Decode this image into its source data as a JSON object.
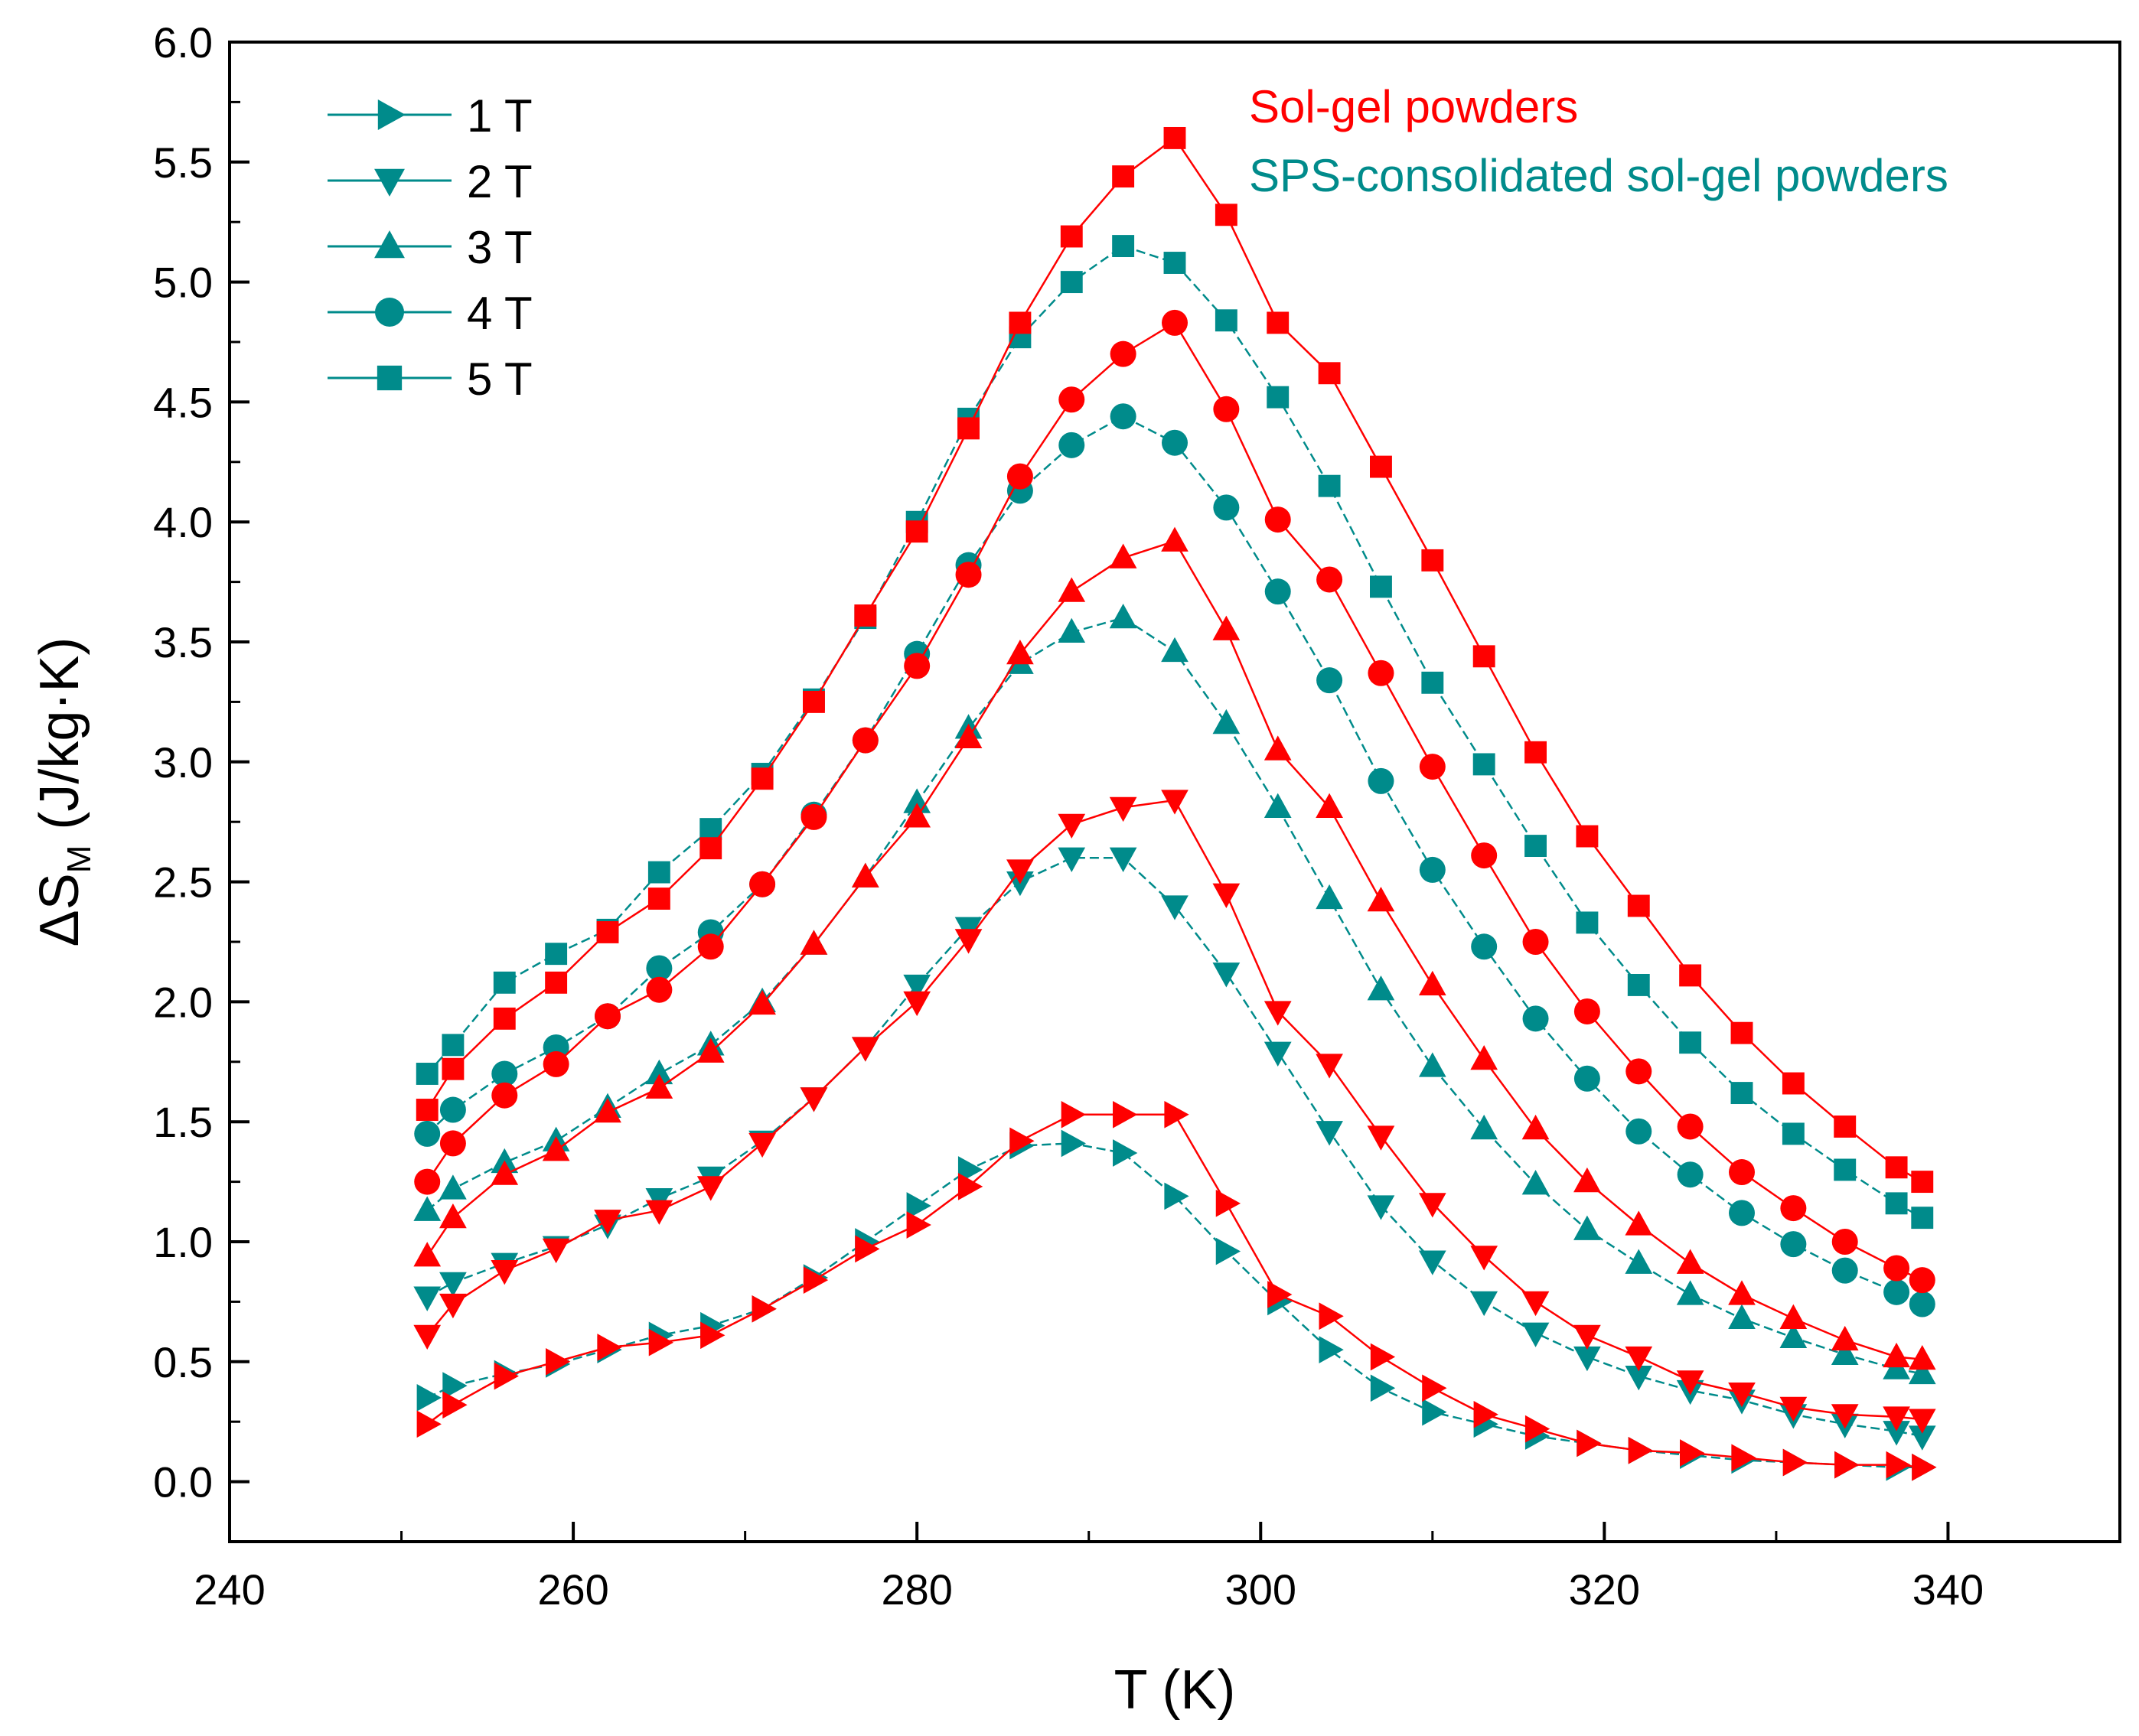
{
  "chart_data": {
    "type": "scatter",
    "xlabel": "T (K)",
    "ylabel_main": "ΔS",
    "ylabel_sub": "M",
    "ylabel_unit": " (J/kg·K)",
    "xlim": [
      240,
      350
    ],
    "ylim": [
      -0.25,
      6.0
    ],
    "x_ticks": [
      240,
      260,
      280,
      300,
      320,
      340
    ],
    "y_ticks": [
      0.0,
      0.5,
      1.0,
      1.5,
      2.0,
      2.5,
      3.0,
      3.5,
      4.0,
      4.5,
      5.0,
      5.5,
      6.0
    ],
    "y_tick_labels": [
      "0.0",
      "0.5",
      "1.0",
      "1.5",
      "2.0",
      "2.5",
      "3.0",
      "3.5",
      "4.0",
      "4.5",
      "5.0",
      "5.5",
      "6.0"
    ],
    "colors": {
      "sol_gel": "#ff0000",
      "sps": "#008b8b",
      "axis": "#000000"
    },
    "legend": {
      "position": "top-left",
      "items": [
        {
          "label": "1 T",
          "marker": "triangle-right"
        },
        {
          "label": "2 T",
          "marker": "triangle-down"
        },
        {
          "label": "3 T",
          "marker": "triangle-up"
        },
        {
          "label": "4 T",
          "marker": "circle"
        },
        {
          "label": "5 T",
          "marker": "square"
        }
      ]
    },
    "annotations": [
      {
        "text": "Sol-gel powders",
        "color_key": "sol_gel"
      },
      {
        "text": "SPS-consolidated sol-gel powders",
        "color_key": "sps"
      }
    ],
    "series": [
      {
        "name": "Sol-gel 1 T",
        "group": "sol_gel",
        "field": "1 T",
        "marker": "triangle-right",
        "x": [
          251.5,
          253,
          256,
          259,
          262,
          265,
          268,
          271,
          274,
          277,
          280,
          283,
          286,
          289,
          292,
          295,
          298,
          301,
          304,
          307,
          310,
          313,
          316,
          319,
          322,
          325,
          328,
          331,
          334,
          337,
          338.5
        ],
        "y": [
          0.24,
          0.32,
          0.44,
          0.5,
          0.56,
          0.58,
          0.61,
          0.72,
          0.84,
          0.97,
          1.07,
          1.23,
          1.42,
          1.53,
          1.53,
          1.53,
          1.16,
          0.78,
          0.69,
          0.52,
          0.39,
          0.28,
          0.22,
          0.16,
          0.13,
          0.12,
          0.1,
          0.08,
          0.07,
          0.07,
          0.06
        ]
      },
      {
        "name": "Sol-gel 2 T",
        "group": "sol_gel",
        "field": "2 T",
        "marker": "triangle-down",
        "x": [
          251.5,
          253,
          256,
          259,
          262,
          265,
          268,
          271,
          274,
          277,
          280,
          283,
          286,
          289,
          292,
          295,
          298,
          301,
          304,
          307,
          310,
          313,
          316,
          319,
          322,
          325,
          328,
          331,
          334,
          337,
          338.5
        ],
        "y": [
          0.61,
          0.74,
          0.88,
          0.97,
          1.09,
          1.13,
          1.23,
          1.41,
          1.6,
          1.81,
          2.0,
          2.26,
          2.55,
          2.74,
          2.81,
          2.84,
          2.45,
          1.96,
          1.74,
          1.44,
          1.16,
          0.94,
          0.75,
          0.61,
          0.52,
          0.42,
          0.37,
          0.31,
          0.28,
          0.27,
          0.26
        ]
      },
      {
        "name": "Sol-gel 3 T",
        "group": "sol_gel",
        "field": "3 T",
        "marker": "triangle-up",
        "x": [
          251.5,
          253,
          256,
          259,
          262,
          265,
          268,
          271,
          274,
          277,
          280,
          283,
          286,
          289,
          292,
          295,
          298,
          301,
          304,
          307,
          310,
          313,
          316,
          319,
          322,
          325,
          328,
          331,
          334,
          337,
          338.5
        ],
        "y": [
          0.94,
          1.1,
          1.28,
          1.38,
          1.54,
          1.64,
          1.79,
          1.99,
          2.24,
          2.52,
          2.77,
          3.1,
          3.45,
          3.71,
          3.85,
          3.92,
          3.55,
          3.05,
          2.81,
          2.42,
          2.07,
          1.76,
          1.47,
          1.25,
          1.07,
          0.91,
          0.78,
          0.68,
          0.59,
          0.52,
          0.51
        ]
      },
      {
        "name": "Sol-gel 4 T",
        "group": "sol_gel",
        "field": "4 T",
        "marker": "circle",
        "x": [
          251.5,
          253,
          256,
          259,
          262,
          265,
          268,
          271,
          274,
          277,
          280,
          283,
          286,
          289,
          292,
          295,
          298,
          301,
          304,
          307,
          310,
          313,
          316,
          319,
          322,
          325,
          328,
          331,
          334,
          337,
          338.5
        ],
        "y": [
          1.25,
          1.41,
          1.61,
          1.74,
          1.94,
          2.05,
          2.23,
          2.49,
          2.77,
          3.09,
          3.4,
          3.78,
          4.19,
          4.51,
          4.7,
          4.83,
          4.47,
          4.01,
          3.76,
          3.37,
          2.98,
          2.61,
          2.25,
          1.96,
          1.71,
          1.48,
          1.29,
          1.14,
          1.0,
          0.89,
          0.84
        ]
      },
      {
        "name": "Sol-gel 5 T",
        "group": "sol_gel",
        "field": "5 T",
        "marker": "square",
        "x": [
          251.5,
          253,
          256,
          259,
          262,
          265,
          268,
          271,
          274,
          277,
          280,
          283,
          286,
          289,
          292,
          295,
          298,
          301,
          304,
          307,
          310,
          313,
          316,
          319,
          322,
          325,
          328,
          331,
          334,
          337,
          338.5
        ],
        "y": [
          1.55,
          1.72,
          1.93,
          2.08,
          2.29,
          2.43,
          2.64,
          2.93,
          3.25,
          3.61,
          3.96,
          4.39,
          4.83,
          5.19,
          5.44,
          5.6,
          5.28,
          4.83,
          4.62,
          4.23,
          3.84,
          3.44,
          3.04,
          2.69,
          2.4,
          2.11,
          1.87,
          1.66,
          1.48,
          1.31,
          1.25
        ]
      },
      {
        "name": "SPS 1 T",
        "group": "sps",
        "field": "1 T",
        "marker": "triangle-right",
        "x": [
          251.5,
          253,
          256,
          259,
          262,
          265,
          268,
          271,
          274,
          277,
          280,
          283,
          286,
          289,
          292,
          295,
          298,
          301,
          304,
          307,
          310,
          313,
          316,
          319,
          322,
          325,
          328,
          331,
          334,
          337,
          338.5
        ],
        "y": [
          0.35,
          0.4,
          0.45,
          0.49,
          0.55,
          0.61,
          0.65,
          0.72,
          0.85,
          1.0,
          1.15,
          1.3,
          1.4,
          1.41,
          1.37,
          1.19,
          0.96,
          0.75,
          0.55,
          0.39,
          0.29,
          0.24,
          0.19,
          0.16,
          0.13,
          0.11,
          0.09,
          0.08,
          0.07,
          0.06,
          0.06
        ]
      },
      {
        "name": "SPS 2 T",
        "group": "sps",
        "field": "2 T",
        "marker": "triangle-down",
        "x": [
          251.5,
          253,
          256,
          259,
          262,
          265,
          268,
          271,
          274,
          277,
          280,
          283,
          286,
          289,
          292,
          295,
          298,
          301,
          304,
          307,
          310,
          313,
          316,
          319,
          322,
          325,
          328,
          331,
          334,
          337,
          338.5
        ],
        "y": [
          0.77,
          0.83,
          0.91,
          0.98,
          1.07,
          1.18,
          1.27,
          1.42,
          1.6,
          1.81,
          2.07,
          2.31,
          2.5,
          2.6,
          2.6,
          2.4,
          2.12,
          1.79,
          1.46,
          1.15,
          0.92,
          0.75,
          0.62,
          0.52,
          0.44,
          0.38,
          0.34,
          0.28,
          0.24,
          0.21,
          0.19
        ]
      },
      {
        "name": "SPS 3 T",
        "group": "sps",
        "field": "3 T",
        "marker": "triangle-up",
        "x": [
          251.5,
          253,
          256,
          259,
          262,
          265,
          268,
          271,
          274,
          277,
          280,
          283,
          286,
          289,
          292,
          295,
          298,
          301,
          304,
          307,
          310,
          313,
          316,
          319,
          322,
          325,
          328,
          331,
          334,
          337,
          338.5
        ],
        "y": [
          1.13,
          1.22,
          1.33,
          1.42,
          1.56,
          1.7,
          1.82,
          2.0,
          2.24,
          2.52,
          2.83,
          3.14,
          3.41,
          3.54,
          3.6,
          3.46,
          3.16,
          2.81,
          2.43,
          2.05,
          1.73,
          1.47,
          1.24,
          1.05,
          0.91,
          0.78,
          0.68,
          0.6,
          0.53,
          0.47,
          0.45
        ]
      },
      {
        "name": "SPS 4 T",
        "group": "sps",
        "field": "4 T",
        "marker": "circle",
        "x": [
          251.5,
          253,
          256,
          259,
          262,
          265,
          268,
          271,
          274,
          277,
          280,
          283,
          286,
          289,
          292,
          295,
          298,
          301,
          304,
          307,
          310,
          313,
          316,
          319,
          322,
          325,
          328,
          331,
          334,
          337,
          338.5
        ],
        "y": [
          1.45,
          1.55,
          1.7,
          1.81,
          1.94,
          2.14,
          2.29,
          2.49,
          2.78,
          3.09,
          3.45,
          3.82,
          4.13,
          4.32,
          4.44,
          4.33,
          4.06,
          3.71,
          3.34,
          2.92,
          2.55,
          2.23,
          1.93,
          1.68,
          1.46,
          1.28,
          1.12,
          0.99,
          0.88,
          0.79,
          0.74
        ]
      },
      {
        "name": "SPS 5 T",
        "group": "sps",
        "field": "5 T",
        "marker": "square",
        "x": [
          251.5,
          253,
          256,
          259,
          262,
          265,
          268,
          271,
          274,
          277,
          280,
          283,
          286,
          289,
          292,
          295,
          298,
          301,
          304,
          307,
          310,
          313,
          316,
          319,
          322,
          325,
          328,
          331,
          334,
          337,
          338.5
        ],
        "y": [
          1.7,
          1.82,
          2.08,
          2.2,
          2.3,
          2.54,
          2.72,
          2.95,
          3.26,
          3.6,
          4.0,
          4.43,
          4.77,
          5.0,
          5.15,
          5.08,
          4.84,
          4.52,
          4.15,
          3.73,
          3.33,
          2.99,
          2.65,
          2.33,
          2.07,
          1.83,
          1.62,
          1.45,
          1.3,
          1.16,
          1.1
        ]
      }
    ]
  }
}
